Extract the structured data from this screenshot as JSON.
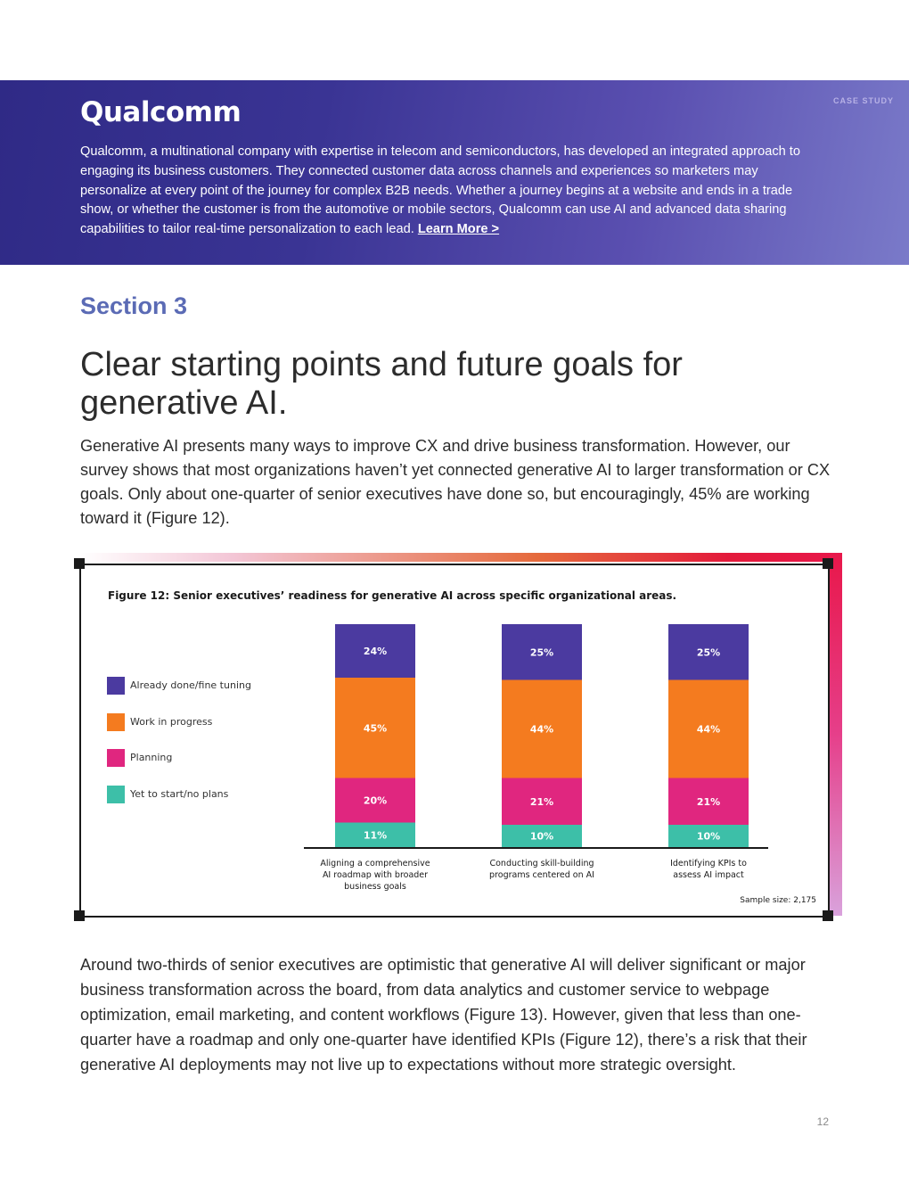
{
  "header": {
    "logo_text": "Qualcomm",
    "tag": "CASE STUDY",
    "description": "Qualcomm, a multinational company with expertise in telecom and semiconductors, has developed an integrated approach to engaging its business customers. They connected customer data across channels and experiences so marketers may personalize at every point of the journey for complex B2B needs. Whether a journey begins at a website and ends in a trade show, or whether the customer is from the automotive or mobile sectors, Qualcomm can use AI and advanced data sharing capabilities to tailor real-time personalization to each lead.",
    "link_label": "Learn More >"
  },
  "section_label": "Section 3",
  "headline": "Clear starting points and future goals for generative AI.",
  "intro": "Generative AI presents many ways to improve CX and drive business transformation. However, our survey shows that most organizations haven’t yet connected generative AI to larger transformation or CX goals. Only about one-quarter of senior executives have done so, but encouragingly, 45% are working toward it (Figure 12).",
  "figure": {
    "title": "Figure 12: Senior executives’ readiness for generative AI across specific organizational areas.",
    "sample_size": "Sample size: 2,175"
  },
  "chart_data": {
    "type": "bar",
    "stacked": true,
    "title": "Figure 12: Senior executives’ readiness for generative AI across specific organizational areas.",
    "categories": [
      "Aligning a comprehensive AI roadmap with broader business goals",
      "Conducting skill-building programs centered on AI",
      "Identifying KPIs to assess AI impact"
    ],
    "category_lines": [
      [
        "Aligning a comprehensive",
        "AI roadmap with broader",
        "business goals"
      ],
      [
        "Conducting skill-building",
        "programs centered on AI"
      ],
      [
        "Identifying KPIs to",
        "assess AI impact"
      ]
    ],
    "series": [
      {
        "name": "Yet to start/no plans",
        "values": [
          11,
          10,
          10
        ],
        "color": "#3dbfa8"
      },
      {
        "name": "Planning",
        "values": [
          20,
          21,
          21
        ],
        "color": "#e0267f"
      },
      {
        "name": "Work in progress",
        "values": [
          45,
          44,
          44
        ],
        "color": "#f47b1f"
      },
      {
        "name": "Already done/fine tuning",
        "values": [
          24,
          25,
          25
        ],
        "color": "#4b3aa0"
      }
    ],
    "legend_order": [
      "Already done/fine tuning",
      "Work in progress",
      "Planning",
      "Yet to start/no plans"
    ],
    "value_suffix": "%",
    "ylim": [
      0,
      100
    ],
    "grid": false,
    "legend_position": "left"
  },
  "outro": "Around two-thirds of senior executives are optimistic that generative AI will deliver significant or major business transformation across the board, from data analytics and customer service to webpage optimization, email marketing, and content workflows (Figure 13). However, given that less than one-quarter have a roadmap and only one-quarter have identified KPIs (Figure 12), there’s a risk that their generative AI deployments may not live up to expectations without more strategic oversight.",
  "page_number": "12"
}
